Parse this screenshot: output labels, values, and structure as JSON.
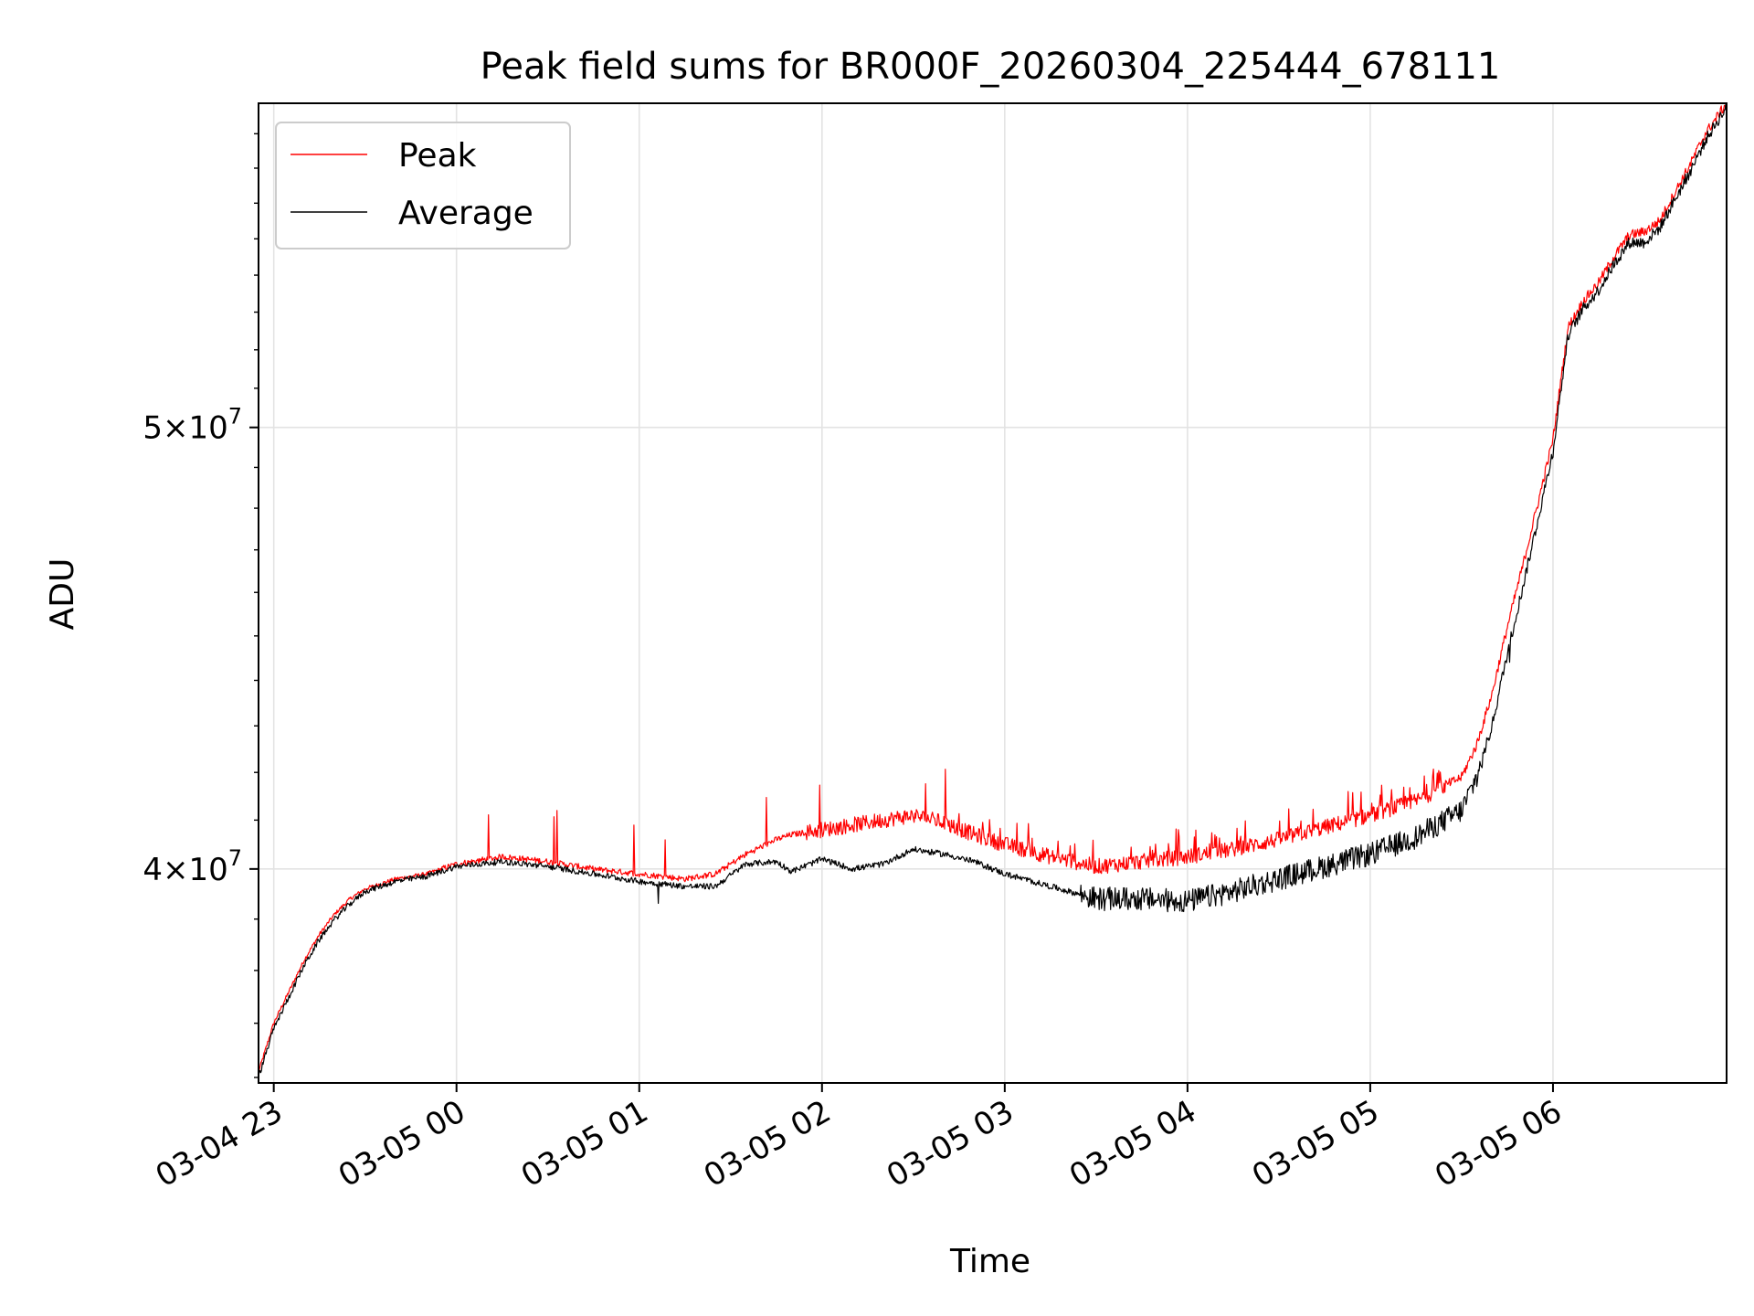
{
  "chart_data": {
    "type": "line",
    "title": "Peak field sums for BR000F_20260304_225444_678111",
    "xlabel": "Time",
    "ylabel": "ADU",
    "x_tick_labels": [
      "03-04 23",
      "03-05 00",
      "03-05 01",
      "03-05 02",
      "03-05 03",
      "03-05 04",
      "03-05 05",
      "03-05 06"
    ],
    "y_tick_labels": [
      {
        "value": 40000000,
        "mantissa": "4",
        "exponent": "7"
      },
      {
        "value": 50000000,
        "mantissa": "5",
        "exponent": "7"
      }
    ],
    "y_scale": "log",
    "ylim": [
      35900000,
      58900000
    ],
    "xlim": [
      "2026-03-04 22:55",
      "2026-03-05 06:57"
    ],
    "grid": true,
    "legend_position": "upper left",
    "series": [
      {
        "name": "Peak",
        "color": "#ff0000",
        "x": [
          "2026-03-04 22:55",
          "2026-03-04 23:00",
          "2026-03-04 23:05",
          "2026-03-04 23:10",
          "2026-03-04 23:15",
          "2026-03-04 23:20",
          "2026-03-04 23:25",
          "2026-03-04 23:30",
          "2026-03-04 23:40",
          "2026-03-04 23:50",
          "2026-03-05 00:00",
          "2026-03-05 00:15",
          "2026-03-05 00:30",
          "2026-03-05 00:45",
          "2026-03-05 01:00",
          "2026-03-05 01:15",
          "2026-03-05 01:25",
          "2026-03-05 01:35",
          "2026-03-05 01:45",
          "2026-03-05 01:50",
          "2026-03-05 02:00",
          "2026-03-05 02:10",
          "2026-03-05 02:20",
          "2026-03-05 02:30",
          "2026-03-05 02:40",
          "2026-03-05 02:50",
          "2026-03-05 03:00",
          "2026-03-05 03:15",
          "2026-03-05 03:30",
          "2026-03-05 03:45",
          "2026-03-05 04:00",
          "2026-03-05 04:15",
          "2026-03-05 04:30",
          "2026-03-05 04:45",
          "2026-03-05 05:00",
          "2026-03-05 05:15",
          "2026-03-05 05:30",
          "2026-03-05 05:35",
          "2026-03-05 05:40",
          "2026-03-05 05:45",
          "2026-03-05 05:50",
          "2026-03-05 05:55",
          "2026-03-05 06:00",
          "2026-03-05 06:05",
          "2026-03-05 06:10",
          "2026-03-05 06:15",
          "2026-03-05 06:20",
          "2026-03-05 06:25",
          "2026-03-05 06:30",
          "2026-03-05 06:35",
          "2026-03-05 06:40",
          "2026-03-05 06:45",
          "2026-03-05 06:50",
          "2026-03-05 06:57"
        ],
        "y": [
          36100000,
          37000000,
          37600000,
          38200000,
          38700000,
          39100000,
          39400000,
          39600000,
          39800000,
          39900000,
          40100000,
          40250000,
          40150000,
          40000000,
          39900000,
          39800000,
          39900000,
          40300000,
          40600000,
          40700000,
          40800000,
          40900000,
          41000000,
          41100000,
          40950000,
          40700000,
          40500000,
          40250000,
          40050000,
          40150000,
          40250000,
          40400000,
          40600000,
          40850000,
          41100000,
          41400000,
          41900000,
          42600000,
          43700000,
          45200000,
          46600000,
          48100000,
          49700000,
          52600000,
          53300000,
          53800000,
          54500000,
          55100000,
          55200000,
          55500000,
          56300000,
          57100000,
          58000000,
          58900000
        ]
      },
      {
        "name": "Average",
        "color": "#000000",
        "x": [
          "2026-03-04 22:55",
          "2026-03-04 23:00",
          "2026-03-04 23:05",
          "2026-03-04 23:10",
          "2026-03-04 23:15",
          "2026-03-04 23:20",
          "2026-03-04 23:25",
          "2026-03-04 23:30",
          "2026-03-04 23:40",
          "2026-03-04 23:50",
          "2026-03-05 00:00",
          "2026-03-05 00:15",
          "2026-03-05 00:30",
          "2026-03-05 00:45",
          "2026-03-05 01:00",
          "2026-03-05 01:15",
          "2026-03-05 01:25",
          "2026-03-05 01:35",
          "2026-03-05 01:45",
          "2026-03-05 01:50",
          "2026-03-05 02:00",
          "2026-03-05 02:10",
          "2026-03-05 02:20",
          "2026-03-05 02:30",
          "2026-03-05 02:40",
          "2026-03-05 02:50",
          "2026-03-05 03:00",
          "2026-03-05 03:15",
          "2026-03-05 03:30",
          "2026-03-05 03:45",
          "2026-03-05 04:00",
          "2026-03-05 04:15",
          "2026-03-05 04:30",
          "2026-03-05 04:45",
          "2026-03-05 05:00",
          "2026-03-05 05:15",
          "2026-03-05 05:30",
          "2026-03-05 05:35",
          "2026-03-05 05:40",
          "2026-03-05 05:45",
          "2026-03-05 05:50",
          "2026-03-05 05:55",
          "2026-03-05 06:00",
          "2026-03-05 06:05",
          "2026-03-05 06:10",
          "2026-03-05 06:15",
          "2026-03-05 06:20",
          "2026-03-05 06:25",
          "2026-03-05 06:30",
          "2026-03-05 06:35",
          "2026-03-05 06:40",
          "2026-03-05 06:45",
          "2026-03-05 06:50",
          "2026-03-05 06:57"
        ],
        "y": [
          36000000,
          36900000,
          37500000,
          38100000,
          38600000,
          39000000,
          39300000,
          39550000,
          39750000,
          39850000,
          40050000,
          40150000,
          40050000,
          39900000,
          39750000,
          39650000,
          39650000,
          40100000,
          40150000,
          39950000,
          40200000,
          40000000,
          40100000,
          40400000,
          40300000,
          40150000,
          39900000,
          39650000,
          39400000,
          39400000,
          39350000,
          39550000,
          39800000,
          40050000,
          40300000,
          40650000,
          41200000,
          41900000,
          43000000,
          44600000,
          46100000,
          47700000,
          49400000,
          52400000,
          53100000,
          53600000,
          54300000,
          54900000,
          54900000,
          55300000,
          56100000,
          56900000,
          57800000,
          58800000
        ]
      }
    ]
  }
}
